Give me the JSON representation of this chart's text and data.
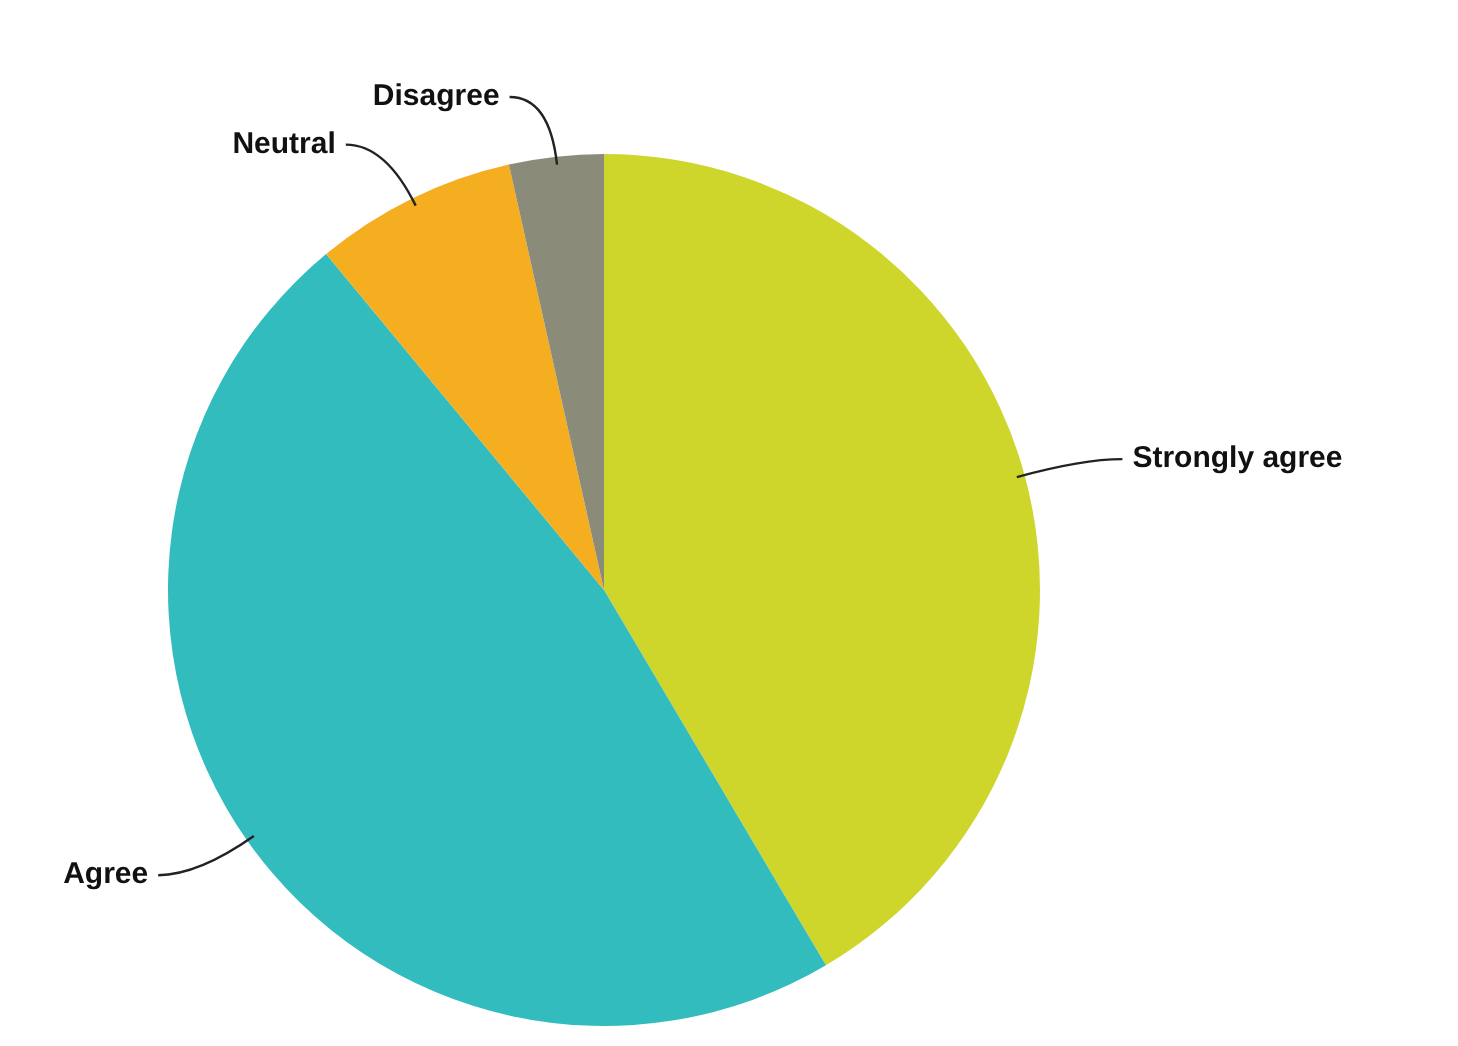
{
  "chart_data": {
    "type": "pie",
    "categories": [
      "Strongly agree",
      "Agree",
      "Neutral",
      "Disagree"
    ],
    "values": [
      41.5,
      47.5,
      7.5,
      3.5
    ],
    "colors": [
      "#cfd62b",
      "#33bcbe",
      "#f5ae1f",
      "#8b8b7a"
    ],
    "legend": false
  }
}
